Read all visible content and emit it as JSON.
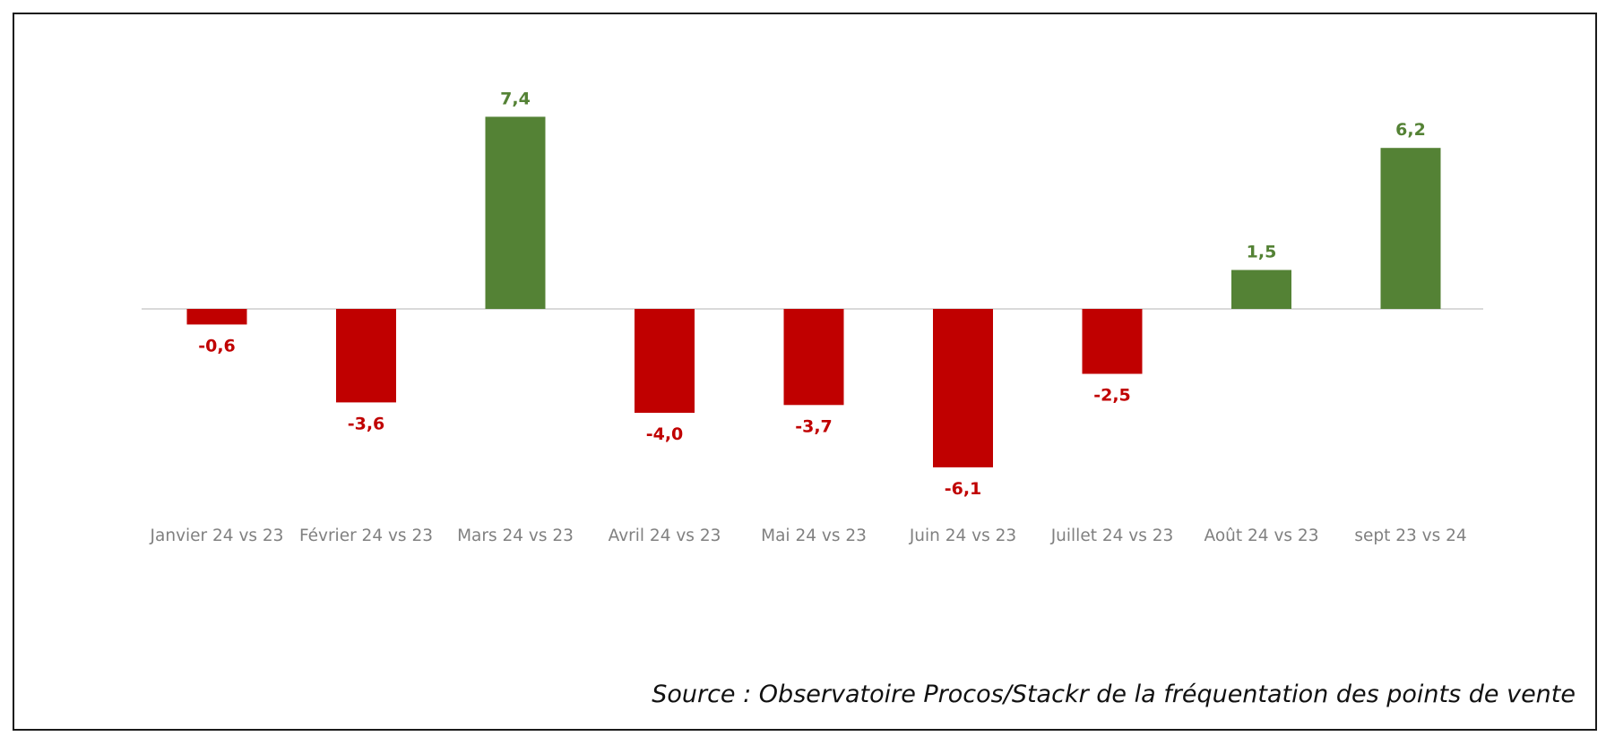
{
  "chart_data": {
    "type": "bar",
    "categories": [
      "Janvier 24 vs 23",
      "Février 24 vs 23",
      "Mars 24 vs 23",
      "Avril 24 vs 23",
      "Mai 24 vs 23",
      "Juin 24 vs 23",
      "Juillet 24 vs 23",
      "Août 24 vs 23",
      "sept 23 vs 24"
    ],
    "values": [
      -0.6,
      -3.6,
      7.4,
      -4.0,
      -3.7,
      -6.1,
      -2.5,
      1.5,
      6.2
    ],
    "data_labels": [
      "-0,6",
      "-3,6",
      "7,4",
      "-4,0",
      "-3,7",
      "-6,1",
      "-2,5",
      "1,5",
      "6,2"
    ],
    "ylim": [
      -8,
      8
    ],
    "grid": false,
    "legend": "none",
    "colors": {
      "positive": "#548235",
      "negative": "#c00000",
      "axis_line": "#d9d9d9",
      "category_label": "#808080"
    }
  },
  "source_text": "Source : Observatoire Procos/Stackr de la fréquentation des points de vente"
}
